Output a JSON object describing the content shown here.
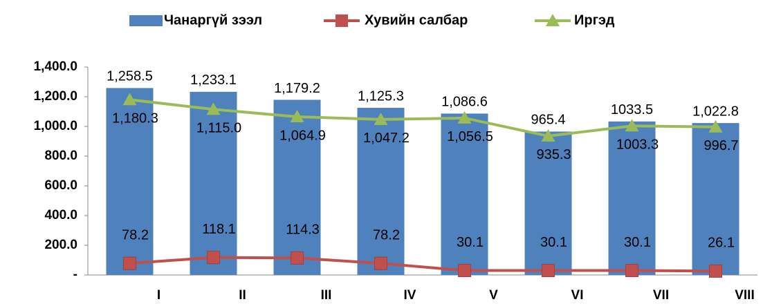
{
  "chart_data": {
    "type": "bar-line",
    "categories": [
      "I",
      "II",
      "III",
      "IV",
      "V",
      "VI",
      "VII",
      "VIII"
    ],
    "series": [
      {
        "name": "Чанаргүй зээл",
        "type": "bar",
        "color": "#4f81bd",
        "values": [
          1258.5,
          1233.1,
          1179.2,
          1125.3,
          1086.6,
          965.4,
          1033.5,
          1022.8
        ],
        "value_labels": [
          "1,258.5",
          "1,233.1",
          "1,179.2",
          "1,125.3",
          "1,086.6",
          "965.4",
          "1033.5",
          "1,022.8"
        ]
      },
      {
        "name": "Хувийн салбар",
        "type": "line",
        "marker": "square",
        "color": "#c0504d",
        "values": [
          78.2,
          118.1,
          114.3,
          78.2,
          30.1,
          30.1,
          30.1,
          26.1
        ]
      },
      {
        "name": "Иргэд",
        "type": "line",
        "marker": "triangle",
        "color": "#9bbb59",
        "values": [
          1180.3,
          1115.0,
          1064.9,
          1047.2,
          1056.5,
          935.3,
          1003.3,
          996.7
        ],
        "value_labels": [
          "1,180.3",
          "1,115.0",
          "1,064.9",
          "1,047.2",
          "1,056.5",
          "935.3",
          "1003.3",
          "996.7"
        ]
      }
    ],
    "ylim": [
      0,
      1400
    ],
    "yticks": [
      {
        "value": 0,
        "label": "-"
      },
      {
        "value": 200,
        "label": "200.0"
      },
      {
        "value": 400,
        "label": "400.0"
      },
      {
        "value": 600,
        "label": "600.0"
      },
      {
        "value": 800,
        "label": "800.0"
      },
      {
        "value": 1000,
        "label": "1,000.0"
      },
      {
        "value": 1200,
        "label": "1,200.0"
      },
      {
        "value": 1400,
        "label": "1,400.0"
      }
    ],
    "legend": "top"
  }
}
